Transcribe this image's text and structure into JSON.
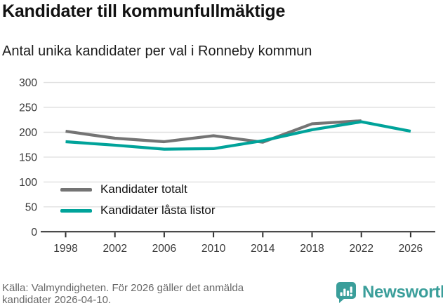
{
  "chart_data": {
    "type": "line",
    "title": "Kandidater till kommunfullmäktige",
    "subtitle": "Antal unika kandidater per val i Ronneby kommun",
    "x_years": [
      1998,
      2002,
      2006,
      2010,
      2014,
      2018,
      2022,
      2026
    ],
    "series": [
      {
        "name": "Kandidater totalt",
        "color": "#747474",
        "x": [
          1998,
          2002,
          2006,
          2010,
          2014,
          2018,
          2022
        ],
        "values": [
          202,
          188,
          181,
          193,
          180,
          217,
          223
        ]
      },
      {
        "name": "Kandidater låsta listor",
        "color": "#00a39a",
        "x": [
          1998,
          2002,
          2006,
          2010,
          2014,
          2018,
          2022,
          2026
        ],
        "values": [
          181,
          174,
          166,
          167,
          183,
          205,
          221,
          202
        ]
      }
    ],
    "ylim": [
      0,
      300
    ],
    "yticks": [
      0,
      50,
      100,
      150,
      200,
      250,
      300
    ],
    "grid": true,
    "legend_position": "inside bottom-left"
  },
  "footer": {
    "source": "Källa: Valmyndigheten. För 2026 gäller det anmälda kandidater 2026-04-10.",
    "brand": "Newsworthy"
  },
  "colors": {
    "series_total": "#747474",
    "series_locked": "#00a39a",
    "brand": "#3a9e9a",
    "grid": "#e0e0e0",
    "axis": "#2f2f2f",
    "tick_text": "#3a3a3a",
    "muted_text": "#686868"
  }
}
